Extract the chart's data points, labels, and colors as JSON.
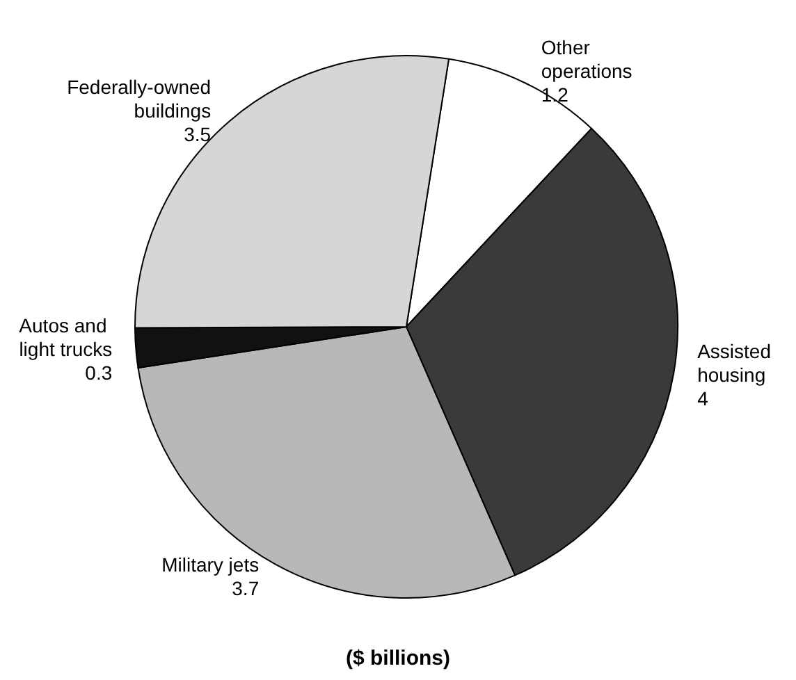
{
  "chart_data": {
    "type": "pie",
    "categories": [
      "Other operations",
      "Assisted housing",
      "Military jets",
      "Autos and light trucks",
      "Federally-owned buildings"
    ],
    "values": [
      1.2,
      4,
      3.7,
      0.3,
      3.5
    ],
    "colors": [
      "#ffffff",
      "#3a3a3a",
      "#b8b8b8",
      "#111111",
      "#d6d6d6"
    ],
    "data_labels": true,
    "annotations": [
      "($ billions)"
    ]
  }
}
